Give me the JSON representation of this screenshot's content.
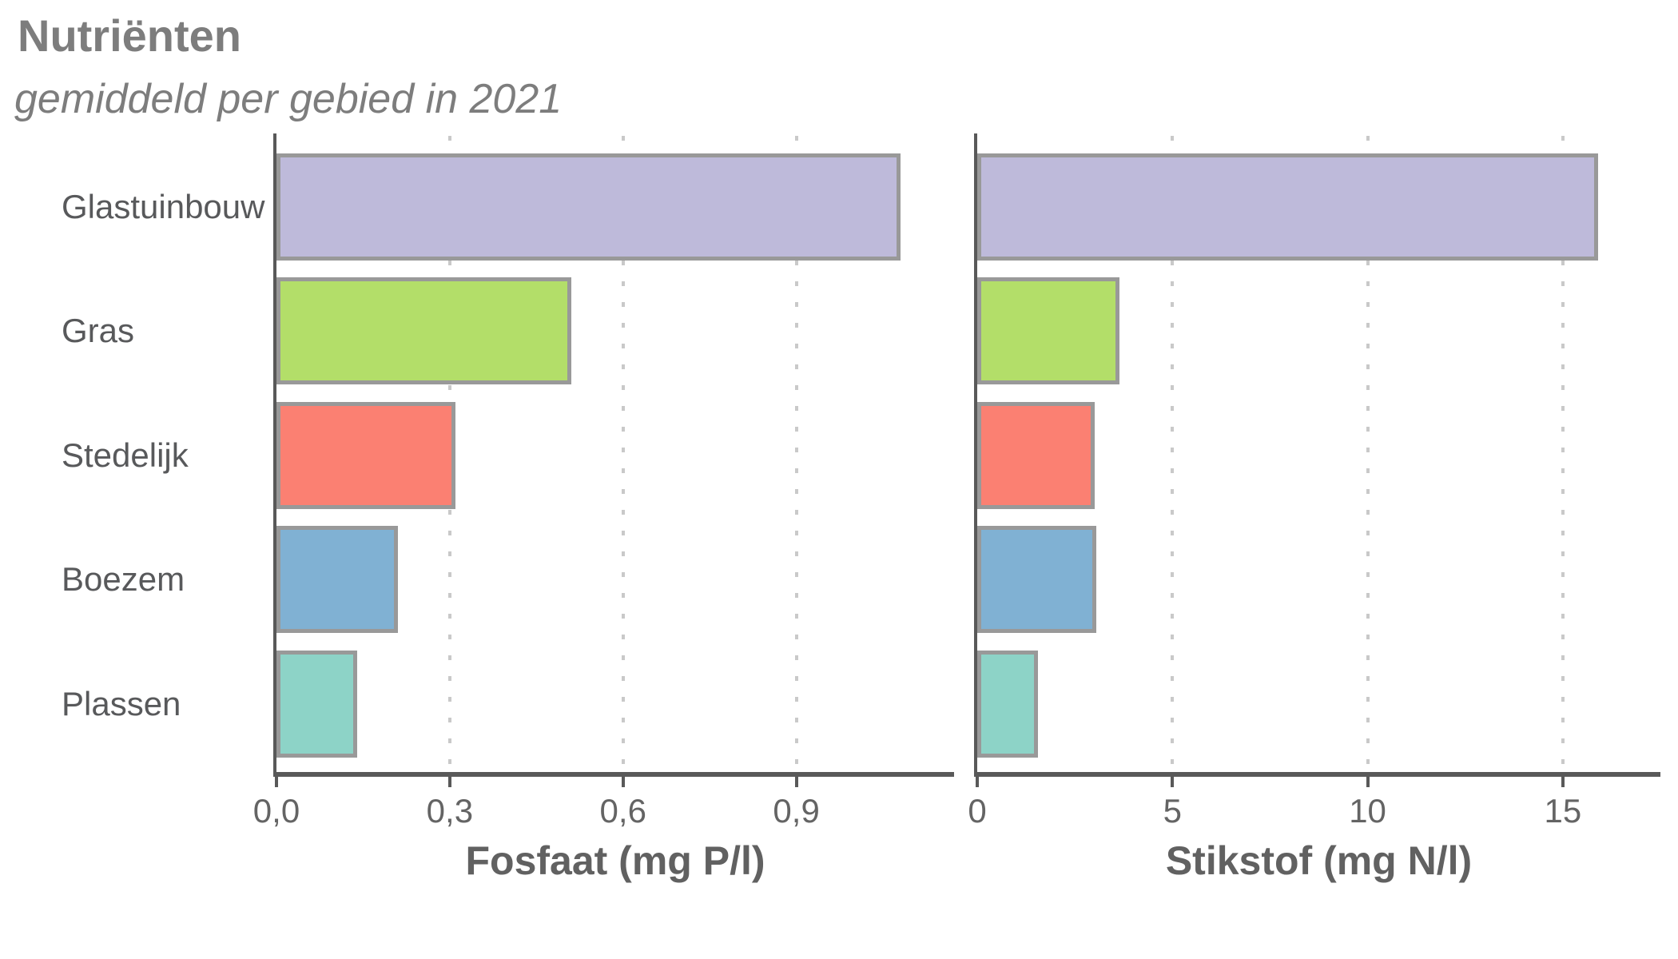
{
  "header": {
    "title": "Nutriënten",
    "subtitle": "gemiddeld per gebied in 2021"
  },
  "categories": [
    "Glastuinbouw",
    "Gras",
    "Stedelijk",
    "Boezem",
    "Plassen"
  ],
  "chart_data": [
    {
      "type": "bar",
      "orientation": "horizontal",
      "panel": "fosfaat",
      "xlabel": "Fosfaat (mg P/l)",
      "categories": [
        "Glastuinbouw",
        "Gras",
        "Stedelijk",
        "Boezem",
        "Plassen"
      ],
      "values": [
        1.08,
        0.51,
        0.31,
        0.21,
        0.14
      ],
      "xticks": {
        "values": [
          0,
          0.3,
          0.6,
          0.9
        ],
        "labels": [
          "0,0",
          "0,3",
          "0,6",
          "0,9"
        ]
      },
      "xlim": [
        0,
        1.173
      ],
      "grid": "dotted-vertical",
      "legend": "none"
    },
    {
      "type": "bar",
      "orientation": "horizontal",
      "panel": "stikstof",
      "xlabel": "Stikstof (mg N/l)",
      "categories": [
        "Glastuinbouw",
        "Gras",
        "Stedelijk",
        "Boezem",
        "Plassen"
      ],
      "values": [
        15.9,
        3.65,
        3.0,
        3.05,
        1.55
      ],
      "xticks": {
        "values": [
          0,
          5,
          10,
          15
        ],
        "labels": [
          "0",
          "5",
          "10",
          "15"
        ]
      },
      "xlim": [
        0,
        17.5
      ],
      "grid": "dotted-vertical",
      "legend": "none"
    }
  ],
  "style": {
    "bar_colors": [
      "#BEBADA",
      "#B3DE69",
      "#FB8072",
      "#80B1D3",
      "#8DD3C7"
    ],
    "bar_border": "#999999",
    "axis_color": "#595959",
    "grid_color": "#C9C9C9",
    "title_color": "#7D7D7D",
    "category_label_color": "#58595B",
    "tick_label_color": "#646464",
    "axis_title_color": "#616161",
    "background": "#FFFFFF"
  }
}
